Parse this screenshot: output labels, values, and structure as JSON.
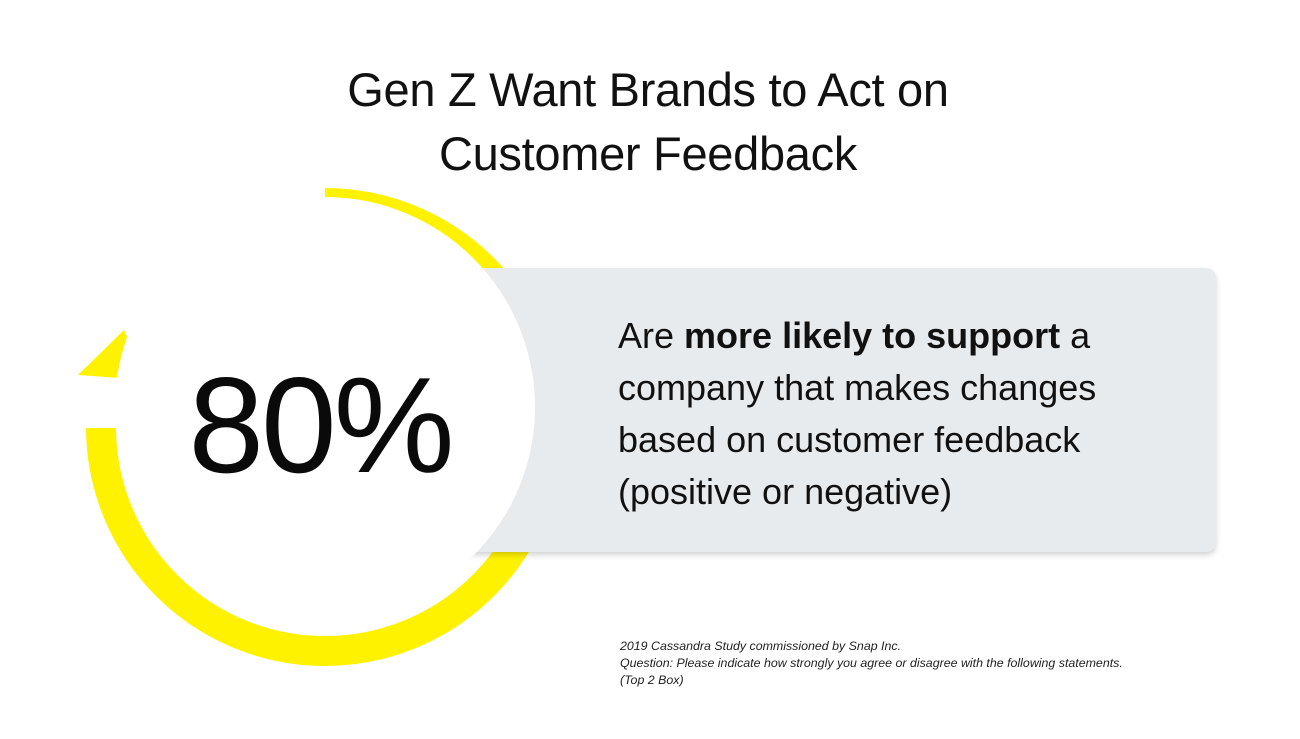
{
  "title": {
    "line1": "Gen Z Want Brands to Act on",
    "line2": "Customer Feedback"
  },
  "stat": {
    "value": "80%",
    "arc_color": "#fff200",
    "arc_icon": "circular-arrow-icon"
  },
  "statement": {
    "prefix": "Are ",
    "emphasis": "more likely to support",
    "suffix": " a company that makes changes based on customer feedback (positive or negative)"
  },
  "footnote": {
    "source": "2019 Cassandra Study commissioned by Snap Inc.",
    "question": "Question: Please indicate how strongly you agree or disagree with the following statements.",
    "note": "(Top 2 Box)"
  },
  "colors": {
    "card": "#e8ebee",
    "accent": "#fff200",
    "text": "#111111"
  }
}
